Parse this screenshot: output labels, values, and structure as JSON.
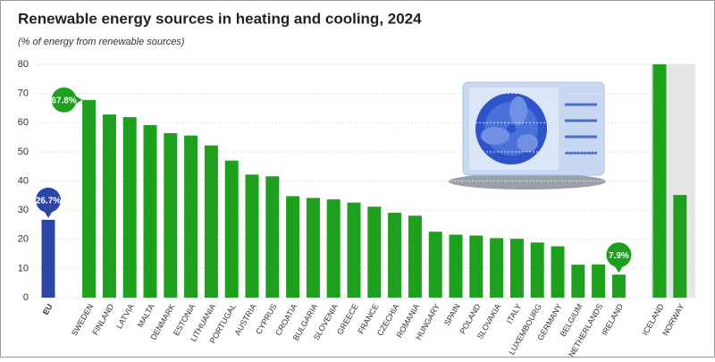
{
  "chart_data": {
    "type": "bar",
    "title": "Renewable energy sources in heating and cooling, 2024",
    "subtitle": "(% of energy from renewable sources)",
    "categories": [
      "EU",
      "SWEDEN",
      "FINLAND",
      "LATVIA",
      "MALTA",
      "DENMARK",
      "ESTONIA",
      "LITHUANIA",
      "PORTUGAL",
      "AUSTRIA",
      "CYPRUS",
      "CROATIA",
      "BULGARIA",
      "SLOVENIA",
      "GREECE",
      "FRANCE",
      "CZECHIA",
      "ROMANIA",
      "HUNGARY",
      "SPAIN",
      "POLAND",
      "SLOVAKIA",
      "ITALY",
      "LUXEMBOURG",
      "GERMANY",
      "BELGIUM",
      "NETHERLANDS",
      "IRELAND",
      "ICELAND",
      "NORWAY"
    ],
    "values": [
      26.7,
      67.8,
      62.8,
      61.9,
      59.2,
      56.4,
      55.6,
      52.2,
      47.0,
      42.2,
      41.6,
      34.8,
      34.2,
      33.7,
      32.6,
      31.2,
      29.1,
      28.1,
      22.6,
      21.6,
      21.3,
      20.4,
      20.2,
      18.9,
      17.6,
      11.3,
      11.4,
      7.9,
      80,
      35.2
    ],
    "value_labels": [
      "26.7%",
      "67.8%",
      null,
      null,
      null,
      null,
      null,
      null,
      null,
      null,
      null,
      null,
      null,
      null,
      null,
      null,
      null,
      null,
      null,
      null,
      null,
      null,
      null,
      null,
      null,
      null,
      null,
      "7.9%",
      null,
      null
    ],
    "colors": {
      "eu": "#2d46a6",
      "member": "#1e9f1e"
    },
    "ylim": [
      0,
      80
    ],
    "yticks": [
      0,
      10,
      20,
      30,
      40,
      50,
      60,
      70,
      80
    ],
    "grid": true
  }
}
